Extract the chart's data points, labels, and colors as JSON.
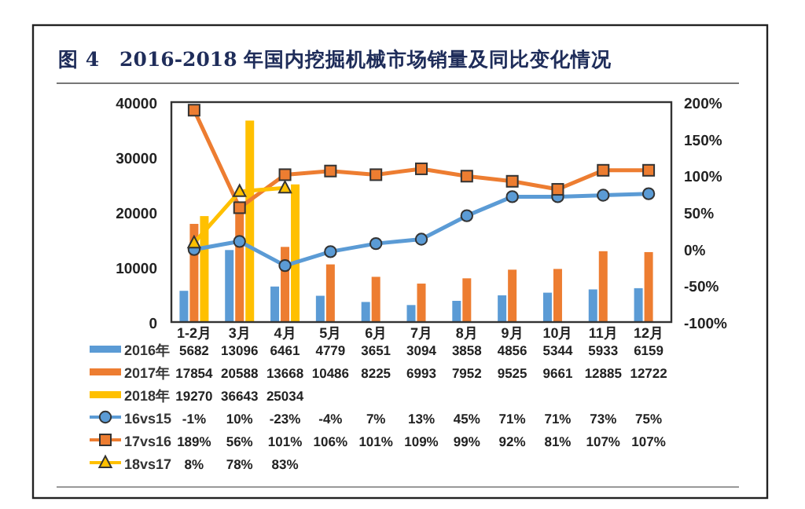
{
  "chart_data": {
    "type": "bar",
    "title": "图 4　2016-2018 年国内挖掘机械市场销量及同比变化情况",
    "categories": [
      "1-2月",
      "3月",
      "4月",
      "5月",
      "6月",
      "7月",
      "8月",
      "9月",
      "10月",
      "11月",
      "12月"
    ],
    "series": [
      {
        "name": "2016年",
        "color": "#5b9bd5",
        "values": [
          5682,
          13096,
          6461,
          4779,
          3651,
          3094,
          3858,
          4856,
          5344,
          5933,
          6159
        ]
      },
      {
        "name": "2017年",
        "color": "#ed7d31",
        "values": [
          17854,
          20588,
          13668,
          10486,
          8225,
          6993,
          7952,
          9525,
          9661,
          12885,
          12722
        ]
      },
      {
        "name": "2018年",
        "color": "#ffc000",
        "values": [
          19270,
          36643,
          25034,
          null,
          null,
          null,
          null,
          null,
          null,
          null,
          null
        ]
      },
      {
        "name": "16vs15",
        "type": "line",
        "axis": "y2",
        "marker": "circle",
        "color": "#5b9bd5",
        "values": [
          -1,
          10,
          -23,
          -4,
          7,
          13,
          45,
          71,
          71,
          73,
          75
        ],
        "value_labels": [
          "-1%",
          "10%",
          "-23%",
          "-4%",
          "7%",
          "13%",
          "45%",
          "71%",
          "71%",
          "73%",
          "75%"
        ]
      },
      {
        "name": "17vs16",
        "type": "line",
        "axis": "y2",
        "marker": "square",
        "color": "#ed7d31",
        "values": [
          189,
          56,
          101,
          106,
          101,
          109,
          99,
          92,
          81,
          107,
          107
        ],
        "value_labels": [
          "189%",
          "56%",
          "101%",
          "106%",
          "101%",
          "109%",
          "99%",
          "92%",
          "81%",
          "107%",
          "107%"
        ]
      },
      {
        "name": "18vs17",
        "type": "line",
        "axis": "y2",
        "marker": "triangle",
        "color": "#ffc000",
        "values": [
          8,
          78,
          83,
          null,
          null,
          null,
          null,
          null,
          null,
          null,
          null
        ],
        "value_labels": [
          "8%",
          "78%",
          "83%",
          null,
          null,
          null,
          null,
          null,
          null,
          null,
          null
        ]
      }
    ],
    "ylim": [
      0,
      40000
    ],
    "yticks": [
      0,
      10000,
      20000,
      30000,
      40000
    ],
    "y2lim": [
      -100,
      200
    ],
    "y2ticks": [
      {
        "value": -100,
        "label": "-100%"
      },
      {
        "value": -50,
        "label": "-50%"
      },
      {
        "value": 0,
        "label": "0%"
      },
      {
        "value": 50,
        "label": "50%"
      },
      {
        "value": 100,
        "label": "100%"
      },
      {
        "value": 150,
        "label": "150%"
      },
      {
        "value": 200,
        "label": "200%"
      }
    ],
    "data_labels": true,
    "legend": "bottom"
  }
}
